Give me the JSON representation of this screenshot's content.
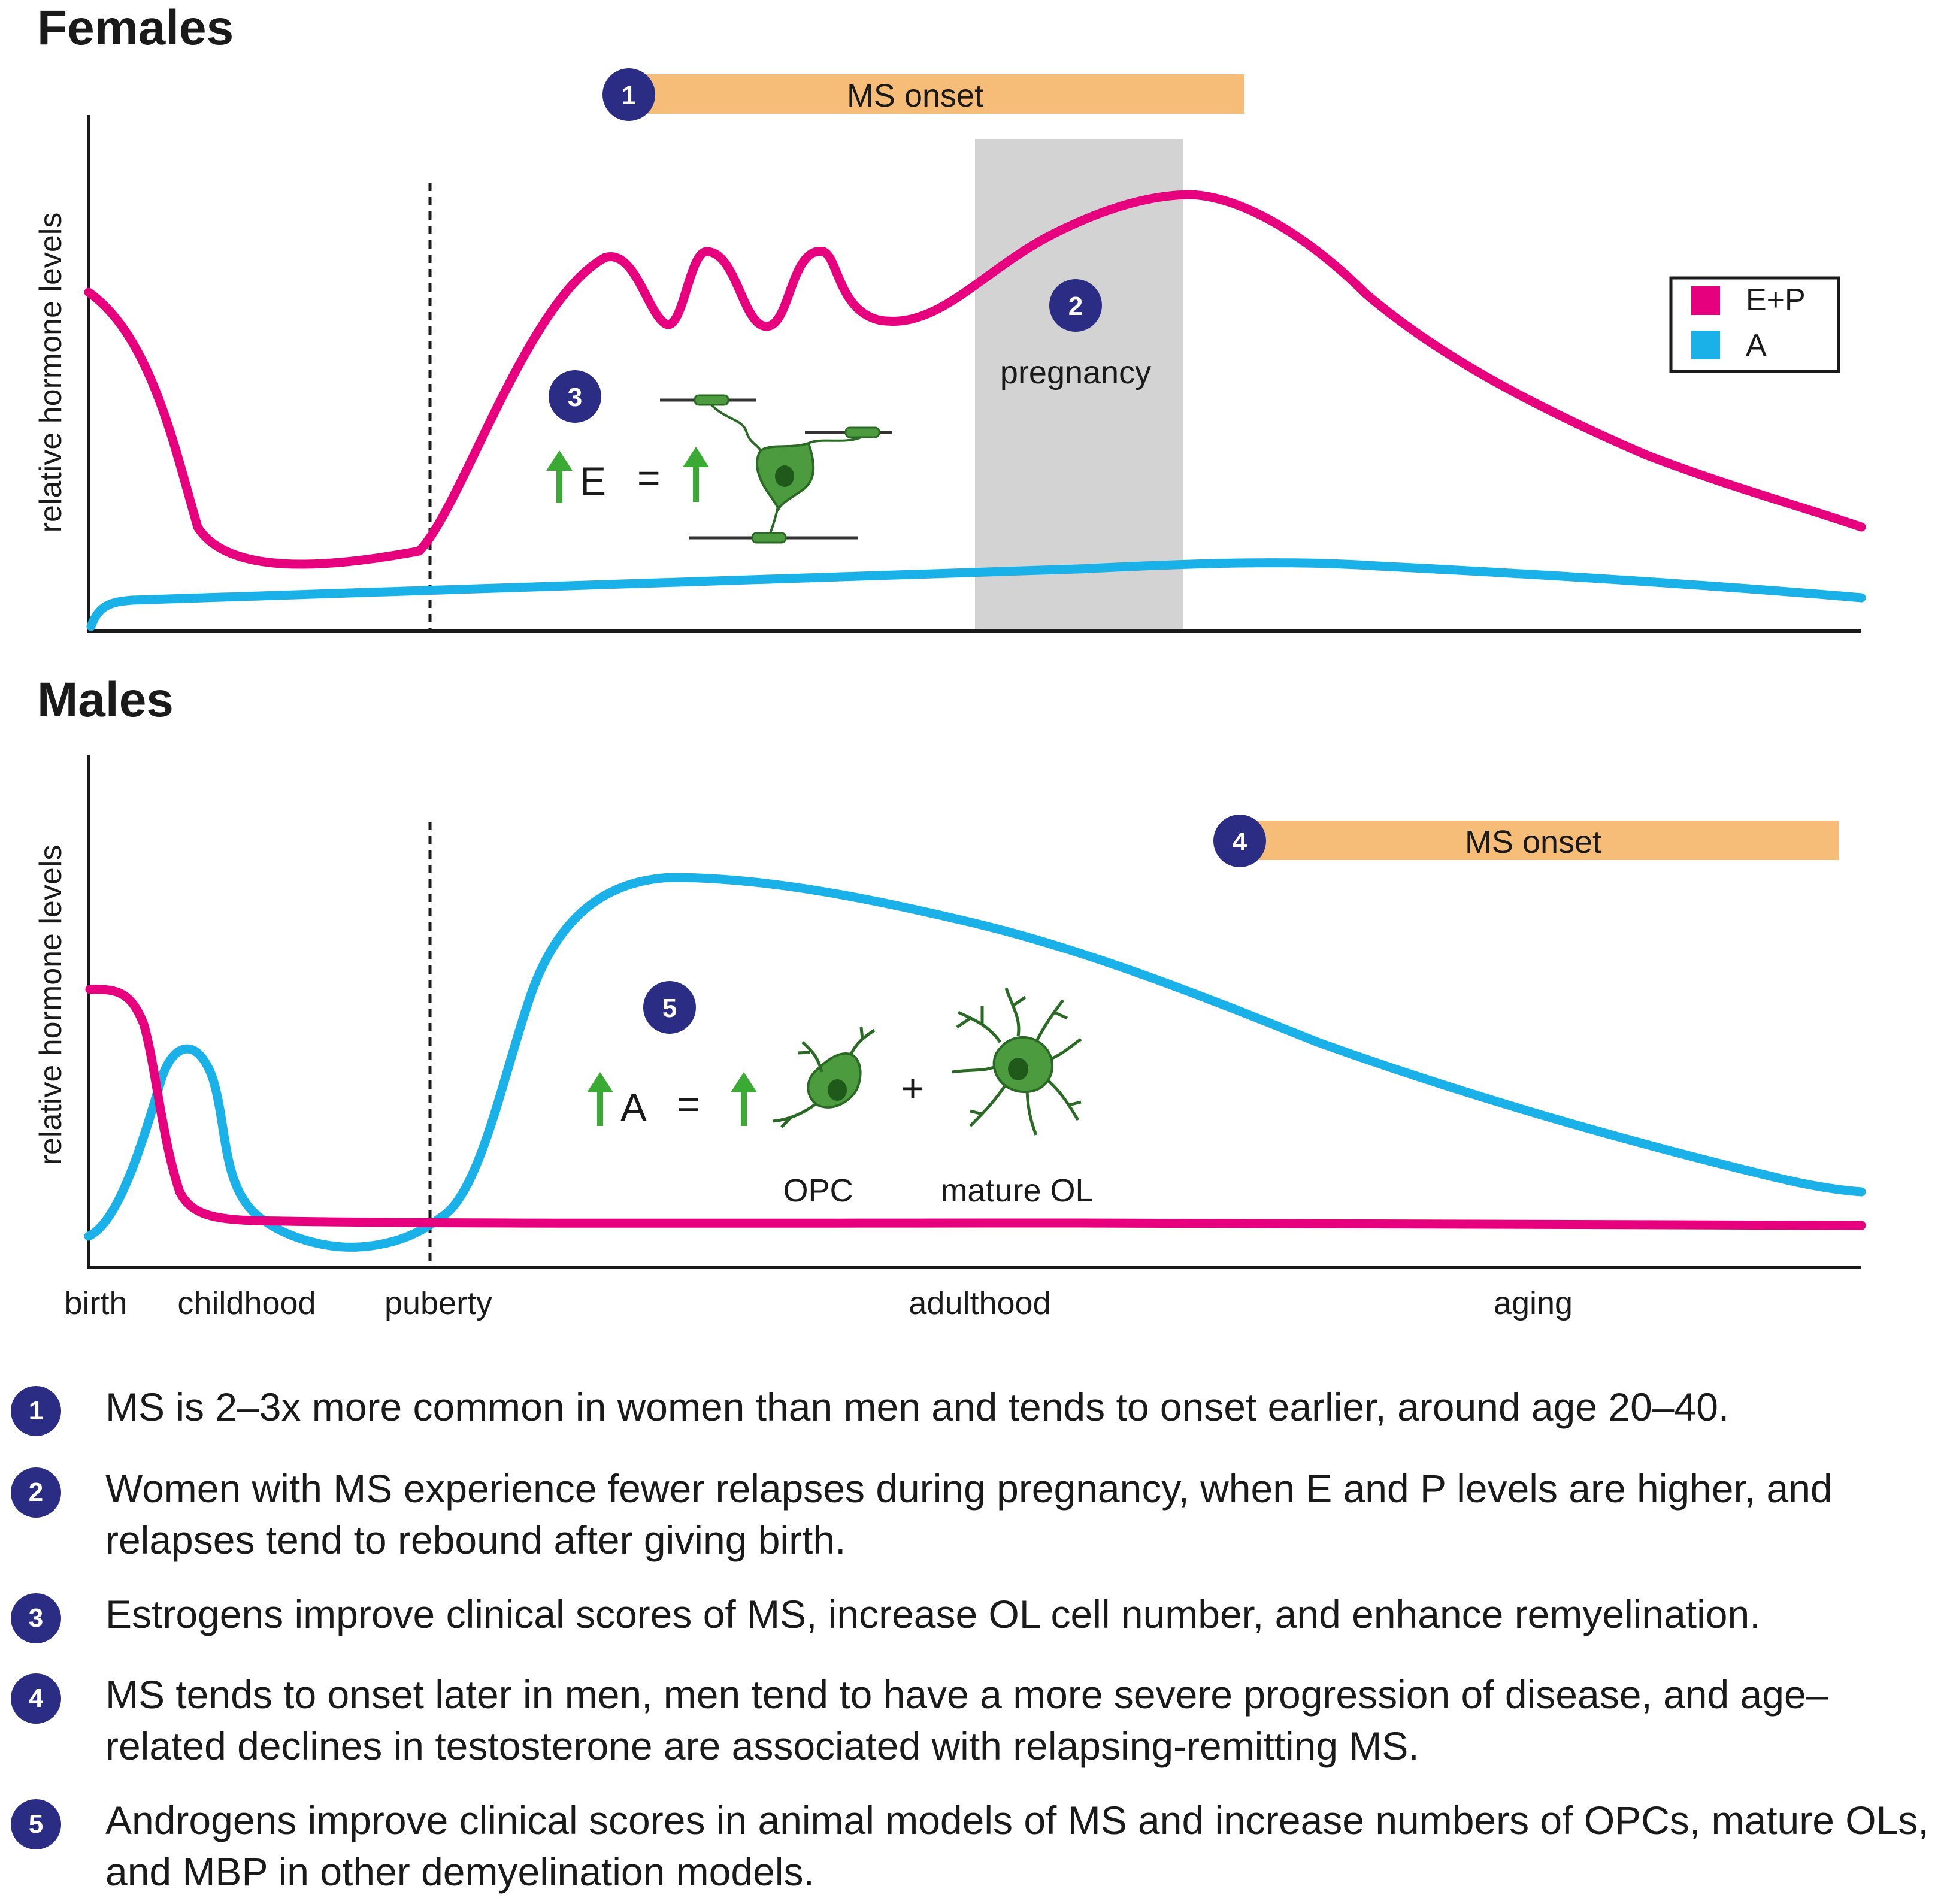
{
  "figure": {
    "females_title": "Females",
    "males_title": "Males",
    "ylabel": "relative hormone levels",
    "ms_onset_label": "MS onset",
    "pregnancy_label": "pregnancy",
    "badges": [
      "1",
      "2",
      "3",
      "4",
      "5"
    ],
    "legend": [
      {
        "label": "E+P",
        "color": "#e6007e"
      },
      {
        "label": "A",
        "color": "#1ab0e8"
      }
    ],
    "x_stages": [
      "birth",
      "childhood",
      "puberty",
      "adulthood",
      "aging"
    ],
    "equation_f": {
      "hormone": "E",
      "equals": "="
    },
    "equation_m": {
      "hormone": "A",
      "equals": "=",
      "plus": "+"
    },
    "cell_labels": {
      "opc": "OPC",
      "mature": "mature OL"
    },
    "colors": {
      "ep": "#e6007e",
      "a": "#1ab0e8",
      "onset_bar": "#f6bd79",
      "badge": "#2b2d84",
      "pregnancy": "#d3d3d3",
      "arrow": "#3aaa35",
      "cell": "#4c9b3f",
      "cell_dark": "#2a6a25"
    }
  },
  "notes": [
    {
      "num": "1",
      "text": "MS is 2–3x more common in women than men and tends to onset earlier, around age 20–40."
    },
    {
      "num": "2",
      "text": "Women with MS experience fewer relapses during pregnancy, when E and P levels are higher, and relapses tend to rebound after giving birth."
    },
    {
      "num": "3",
      "text": "Estrogens improve clinical scores of MS, increase OL cell number, and enhance remyelination."
    },
    {
      "num": "4",
      "text": "MS tends to onset later in men, men tend to have a more severe progression of disease, and age–related declines in testosterone are associated with relapsing-remitting MS."
    },
    {
      "num": "5",
      "text": "Androgens improve clinical scores in animal models of MS and increase numbers of OPCs, mature OLs, and MBP in other demyelination models."
    }
  ]
}
